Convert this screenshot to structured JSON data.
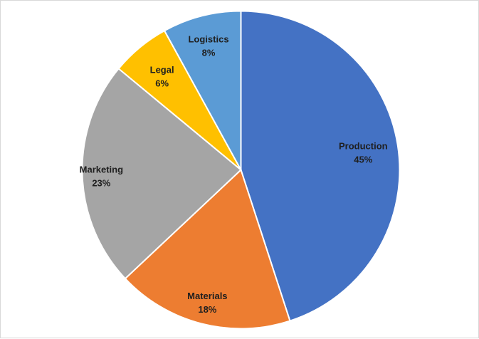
{
  "chart_data": {
    "type": "pie",
    "title": "",
    "categories": [
      "Production",
      "Materials",
      "Marketing",
      "Legal",
      "Logistics"
    ],
    "values": [
      45,
      18,
      23,
      6,
      8
    ],
    "value_labels": [
      "45%",
      "18%",
      "23%",
      "6%",
      "8%"
    ],
    "colors": [
      "#4472c4",
      "#ed7d31",
      "#a5a5a5",
      "#ffc000",
      "#5b9bd5"
    ],
    "start_angle": "12 o'clock",
    "direction": "clockwise",
    "legend": "none",
    "data_labels": "category name and percentage"
  }
}
